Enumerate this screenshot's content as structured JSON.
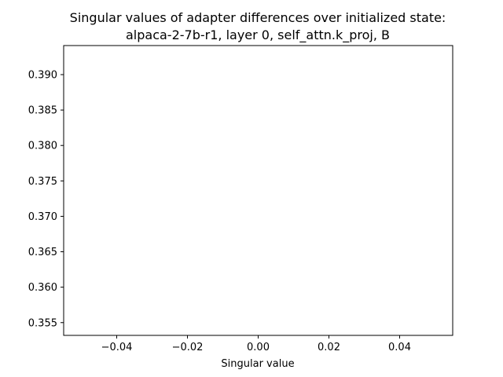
{
  "chart_data": {
    "type": "line",
    "title": [
      "Singular values of adapter differences over initialized state:",
      "alpaca-2-7b-r1, layer 0, self_attn.k_proj, B"
    ],
    "xlabel": "Singular value",
    "ylabel": "",
    "xlim": [
      -0.055,
      0.055
    ],
    "ylim": [
      0.3532,
      0.3941
    ],
    "xticks": [
      -0.04,
      -0.02,
      0.0,
      0.02,
      0.04
    ],
    "xtick_labels": [
      "−0.04",
      "−0.02",
      "0.00",
      "0.02",
      "0.04"
    ],
    "yticks": [
      0.355,
      0.36,
      0.365,
      0.37,
      0.375,
      0.38,
      0.385,
      0.39
    ],
    "ytick_labels": [
      "0.355",
      "0.360",
      "0.365",
      "0.370",
      "0.375",
      "0.380",
      "0.385",
      "0.390"
    ],
    "grid": false,
    "series": []
  }
}
